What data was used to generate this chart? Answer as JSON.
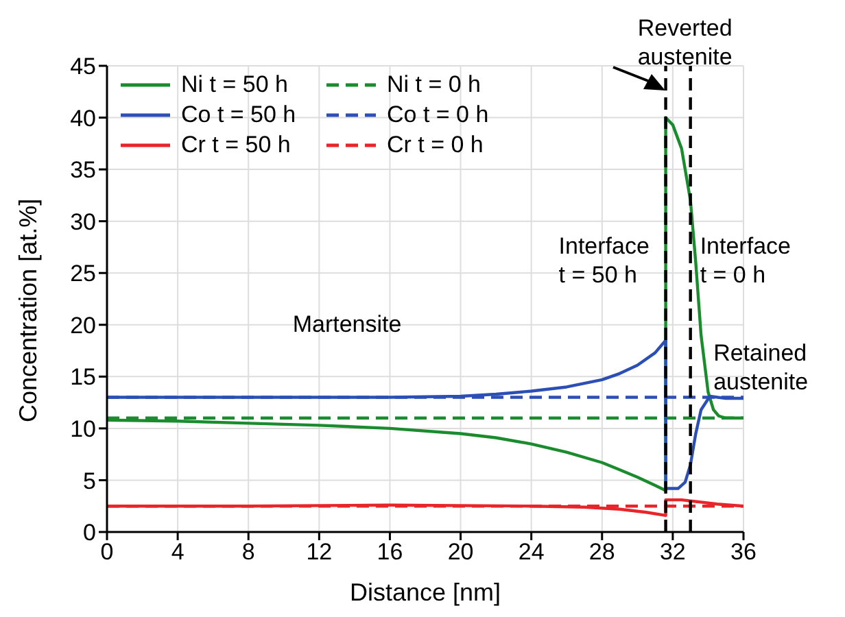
{
  "chart_data": {
    "type": "line",
    "xlabel": "Distance [nm]",
    "ylabel": "Concentration [at.%]",
    "xlim": [
      0,
      36
    ],
    "xticks": [
      0,
      4,
      8,
      12,
      16,
      20,
      24,
      28,
      32,
      36
    ],
    "ylim": [
      0,
      45
    ],
    "yticks": [
      0,
      5,
      10,
      15,
      20,
      25,
      30,
      35,
      40,
      45
    ],
    "grid": true,
    "legend": "top left",
    "marker": "none",
    "series": [
      {
        "name": "Ni t = 50 h",
        "color": "#1a8c2e",
        "line_style": "solid",
        "x": [
          0,
          4,
          8,
          12,
          16,
          20,
          22,
          24,
          26,
          28,
          29,
          30,
          31,
          31.6,
          31.6,
          32,
          32.5,
          33,
          33.3,
          33.6,
          34,
          34.3,
          34.6,
          35,
          36
        ],
        "values": [
          10.8,
          10.7,
          10.5,
          10.3,
          10,
          9.5,
          9.1,
          8.5,
          7.7,
          6.7,
          6.0,
          5.3,
          4.5,
          4.0,
          40,
          39.3,
          37,
          32,
          26,
          19,
          13.5,
          11.8,
          11.2,
          11,
          11
        ]
      },
      {
        "name": "Ni t = 0 h",
        "color": "#1a8c2e",
        "line_style": "dashed",
        "x": [
          0,
          36
        ],
        "values": [
          11,
          11
        ]
      },
      {
        "name": "Co t = 50 h",
        "color": "#2b4fb5",
        "line_style": "solid",
        "x": [
          0,
          8,
          16,
          20,
          22,
          24,
          26,
          28,
          29,
          30,
          31,
          31.6,
          31.6,
          32.3,
          32.7,
          33,
          33.3,
          33.6,
          34.1,
          35,
          36
        ],
        "values": [
          13,
          13,
          13,
          13.1,
          13.3,
          13.6,
          14,
          14.7,
          15.3,
          16.1,
          17.3,
          18.5,
          4.2,
          4.2,
          4.8,
          6.5,
          9.5,
          11.8,
          13.1,
          12.9,
          12.9
        ]
      },
      {
        "name": "Co t = 0 h",
        "color": "#2b4fb5",
        "line_style": "dashed",
        "x": [
          0,
          36
        ],
        "values": [
          13,
          13
        ]
      },
      {
        "name": "Cr t = 50 h",
        "color": "#e8262a",
        "line_style": "solid",
        "x": [
          0,
          8,
          16,
          24,
          27,
          29,
          30.5,
          31.6,
          31.6,
          32.5,
          33.5,
          34.5,
          36
        ],
        "values": [
          2.5,
          2.5,
          2.6,
          2.5,
          2.4,
          2.2,
          1.9,
          1.6,
          3.1,
          3.1,
          2.9,
          2.7,
          2.5
        ]
      },
      {
        "name": "Cr t = 0 h",
        "color": "#e8262a",
        "line_style": "dashed",
        "x": [
          0,
          36
        ],
        "values": [
          2.5,
          2.5
        ]
      }
    ],
    "ref_lines": [
      {
        "axis": "x",
        "value": 31.6,
        "color": "#000000",
        "line_style": "dashed"
      },
      {
        "axis": "x",
        "value": 33,
        "color": "#000000",
        "line_style": "dashed"
      }
    ],
    "annotations": [
      {
        "text": "Reverted austenite",
        "x": 31.6,
        "y": 42.5
      },
      "Martensite",
      "Retained austenite",
      "Interface t = 50 h",
      "Interface t = 0 h"
    ]
  }
}
